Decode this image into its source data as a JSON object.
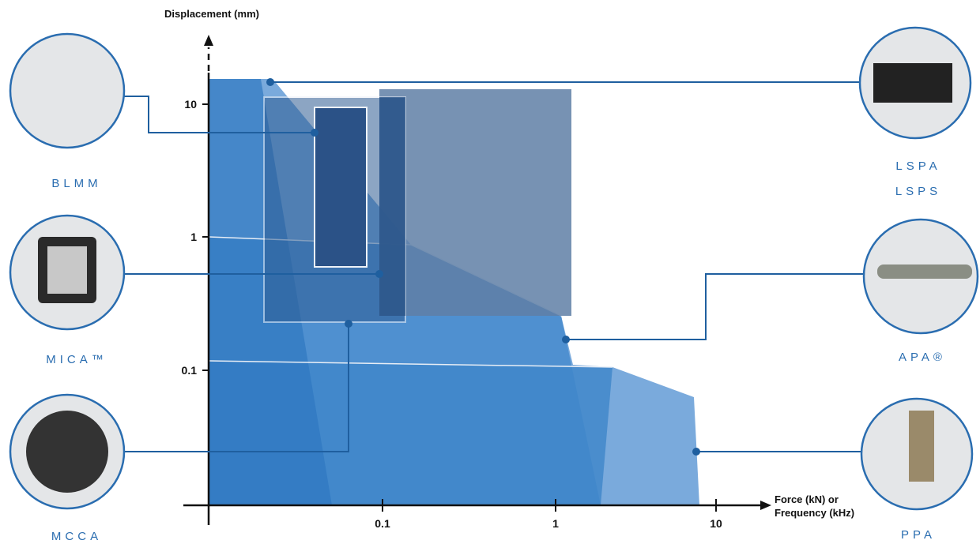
{
  "y_axis_label": "Displacement (mm)",
  "x_axis_label": [
    "Force (kN) or",
    "Frequency (kHz)"
  ],
  "y_ticks": [
    "10",
    "1",
    "0.1"
  ],
  "x_ticks": [
    "0.1",
    "1",
    "10"
  ],
  "products": {
    "blmm": "BLMM",
    "mica": "MICA™",
    "mcca": "MCCA",
    "lspa": [
      "LSPA",
      "LSPS"
    ],
    "apa": "APA®",
    "ppa": "PPA"
  }
}
